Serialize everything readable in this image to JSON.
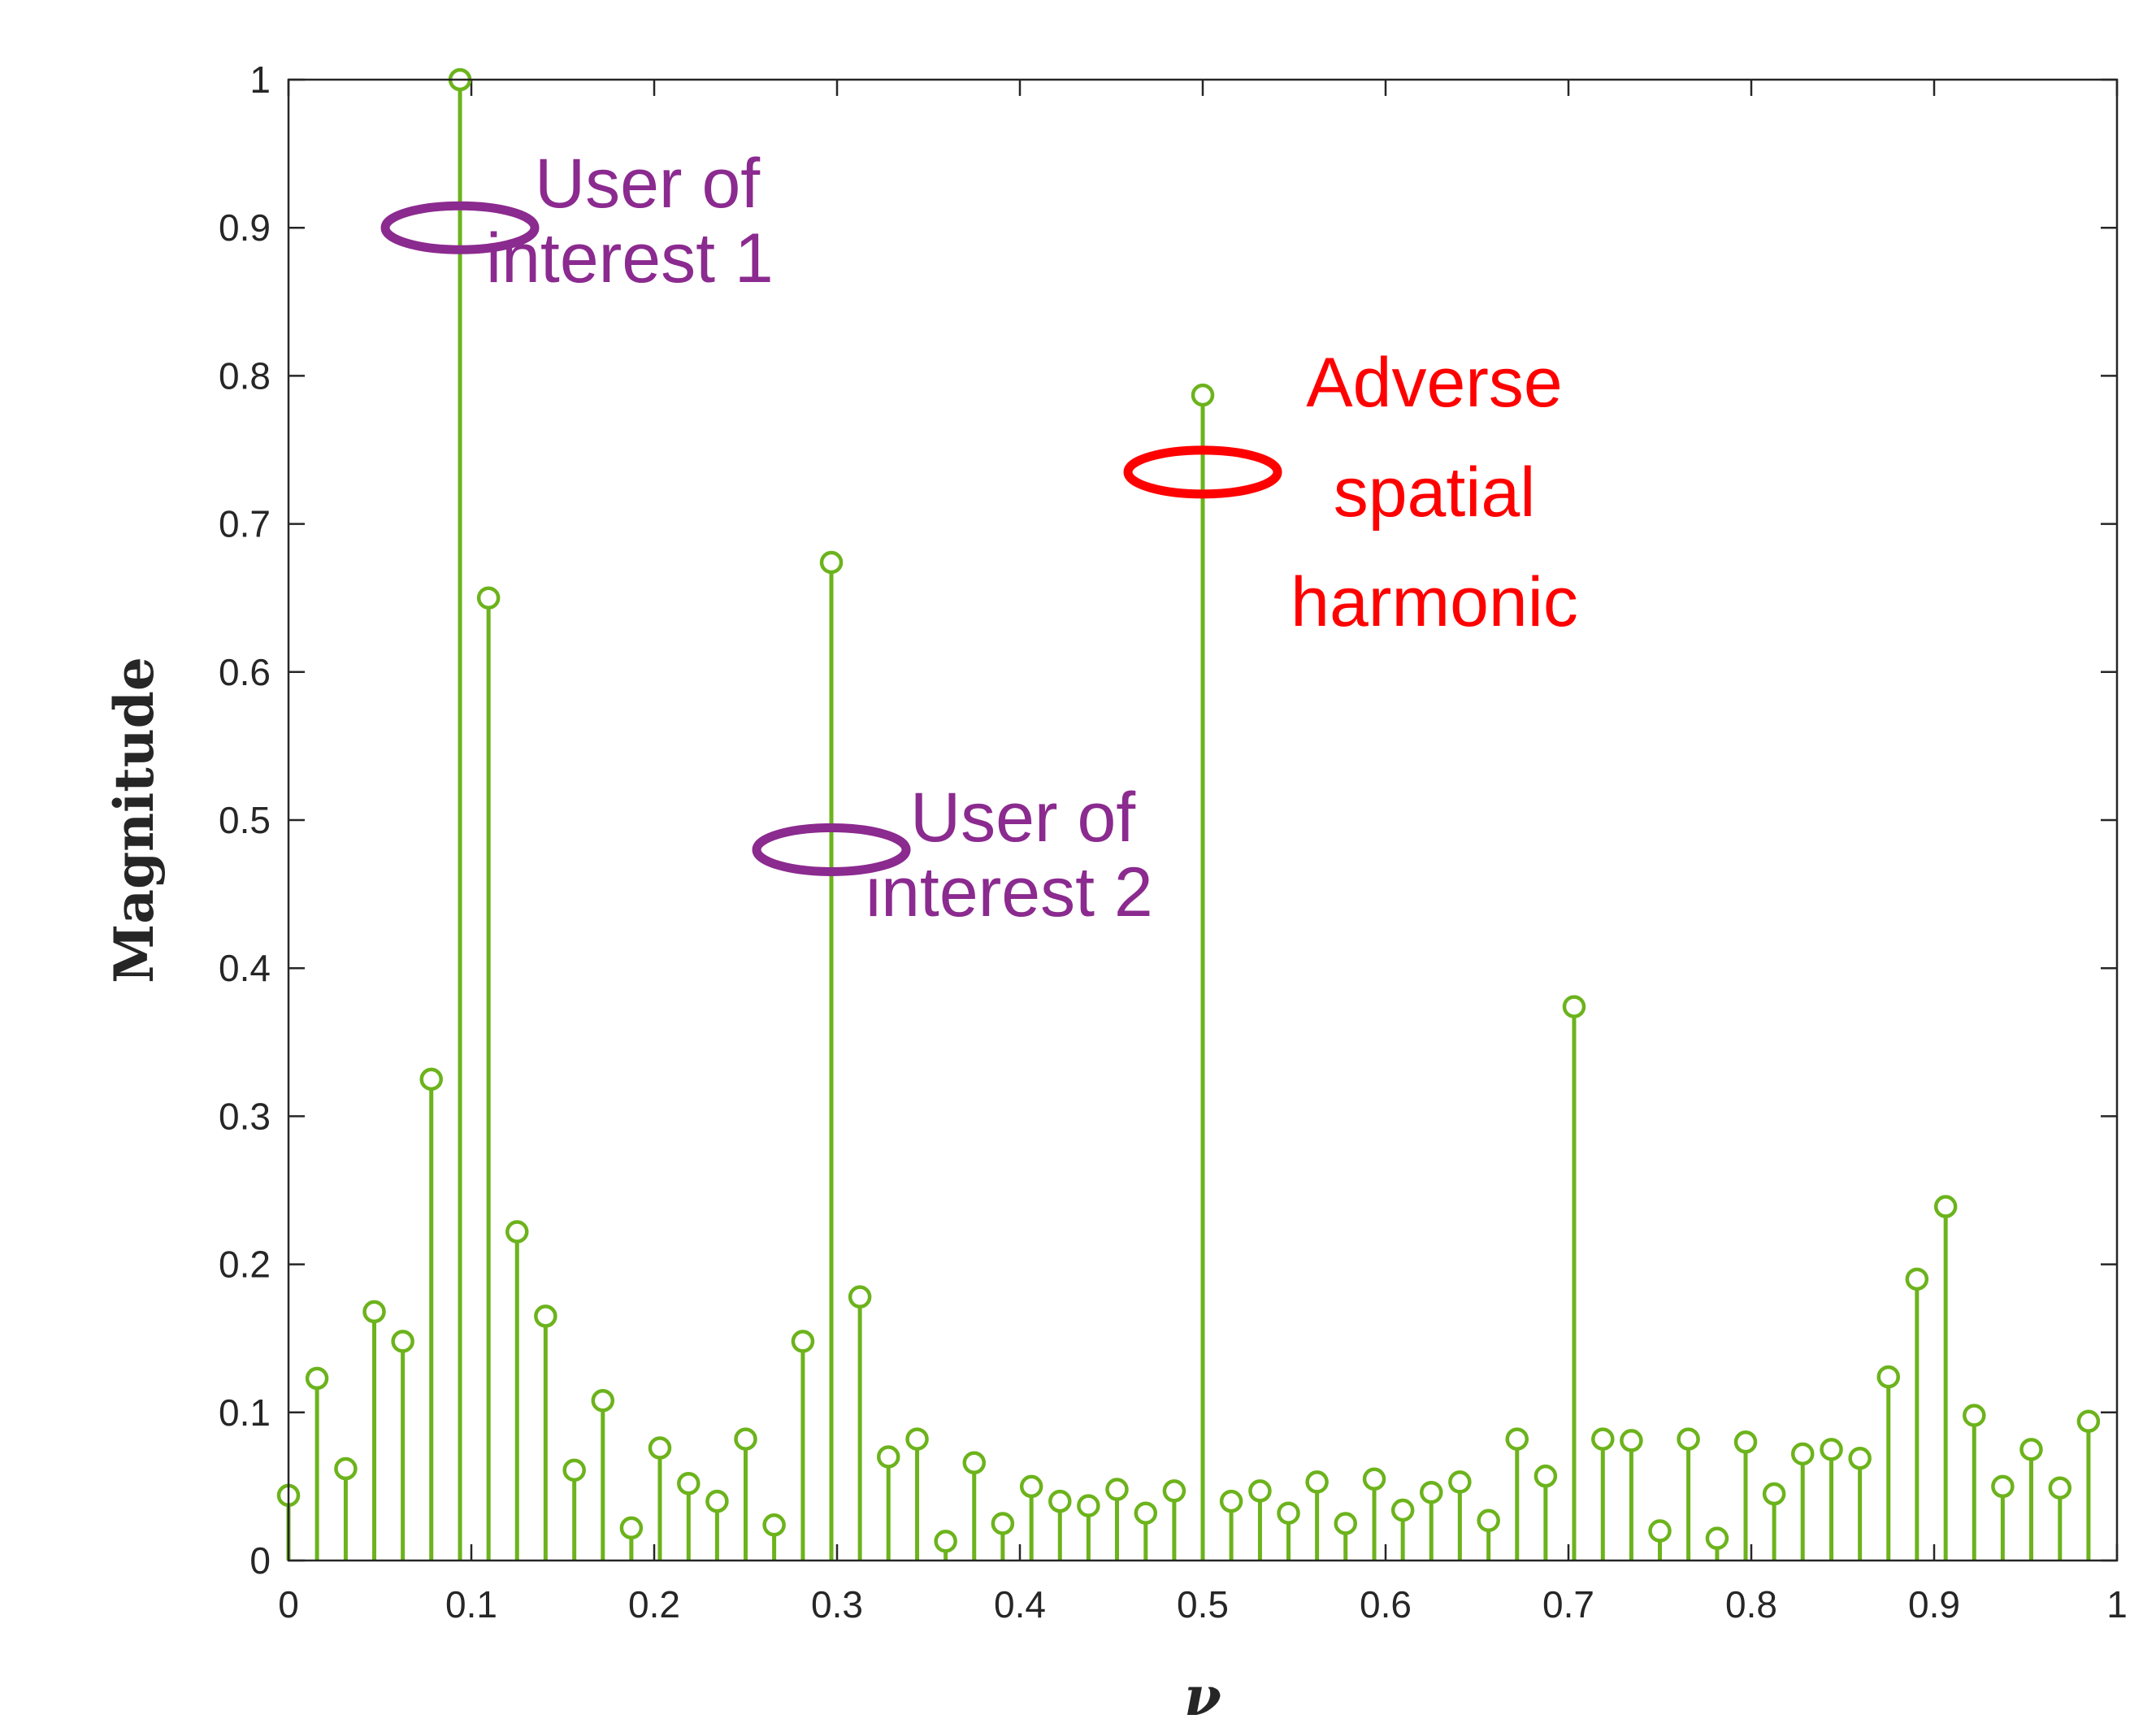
{
  "chart_data": {
    "type": "stem",
    "title": "",
    "xlabel": "ν",
    "ylabel": "Magnitude",
    "xlim": [
      0,
      1
    ],
    "ylim": [
      0,
      1
    ],
    "xticks": [
      "0",
      "0.1",
      "0.2",
      "0.3",
      "0.4",
      "0.5",
      "0.6",
      "0.7",
      "0.8",
      "0.9",
      "1"
    ],
    "yticks": [
      "0",
      "0.1",
      "0.2",
      "0.3",
      "0.4",
      "0.5",
      "0.6",
      "0.7",
      "0.8",
      "0.9",
      "1"
    ],
    "grid": false,
    "stem_color": "#6cb31c",
    "x": [
      0,
      0.0156,
      0.0313,
      0.0469,
      0.0625,
      0.0781,
      0.0938,
      0.1094,
      0.125,
      0.1406,
      0.1563,
      0.1719,
      0.1875,
      0.2031,
      0.2188,
      0.2344,
      0.25,
      0.2656,
      0.2813,
      0.2969,
      0.3125,
      0.3281,
      0.3438,
      0.3594,
      0.375,
      0.3906,
      0.4063,
      0.4219,
      0.4375,
      0.4531,
      0.4688,
      0.4844,
      0.5,
      0.5156,
      0.5313,
      0.5469,
      0.5625,
      0.5781,
      0.5938,
      0.6094,
      0.625,
      0.6406,
      0.6563,
      0.6719,
      0.6875,
      0.7031,
      0.7188,
      0.7344,
      0.75,
      0.7656,
      0.7813,
      0.7969,
      0.8125,
      0.8281,
      0.8438,
      0.8594,
      0.875,
      0.8906,
      0.9063,
      0.9219,
      0.9375,
      0.9531,
      0.9688,
      0.9844
    ],
    "y": [
      0.044,
      0.123,
      0.062,
      0.168,
      0.148,
      0.325,
      1.0,
      0.65,
      0.222,
      0.165,
      0.061,
      0.108,
      0.022,
      0.076,
      0.052,
      0.04,
      0.082,
      0.024,
      0.148,
      0.674,
      0.178,
      0.07,
      0.082,
      0.013,
      0.066,
      0.025,
      0.05,
      0.04,
      0.037,
      0.048,
      0.032,
      0.047,
      0.787,
      0.04,
      0.047,
      0.032,
      0.053,
      0.025,
      0.055,
      0.034,
      0.046,
      0.053,
      0.027,
      0.082,
      0.057,
      0.374,
      0.082,
      0.081,
      0.02,
      0.082,
      0.015,
      0.08,
      0.045,
      0.072,
      0.075,
      0.069,
      0.124,
      0.19,
      0.239,
      0.098,
      0.05,
      0.075,
      0.049,
      0.094
    ],
    "annotations": [
      {
        "lines": [
          "User of",
          "interest 1"
        ],
        "color": "#8b2a8f",
        "at": [
          0.0938,
          0.9
        ]
      },
      {
        "lines": [
          "User of",
          "interest 2"
        ],
        "color": "#8b2a8f",
        "at": [
          0.2969,
          0.48
        ]
      },
      {
        "lines": [
          "Adverse",
          "spatial",
          "harmonic"
        ],
        "color": "#ff0000",
        "at": [
          0.5,
          0.735
        ]
      }
    ]
  }
}
